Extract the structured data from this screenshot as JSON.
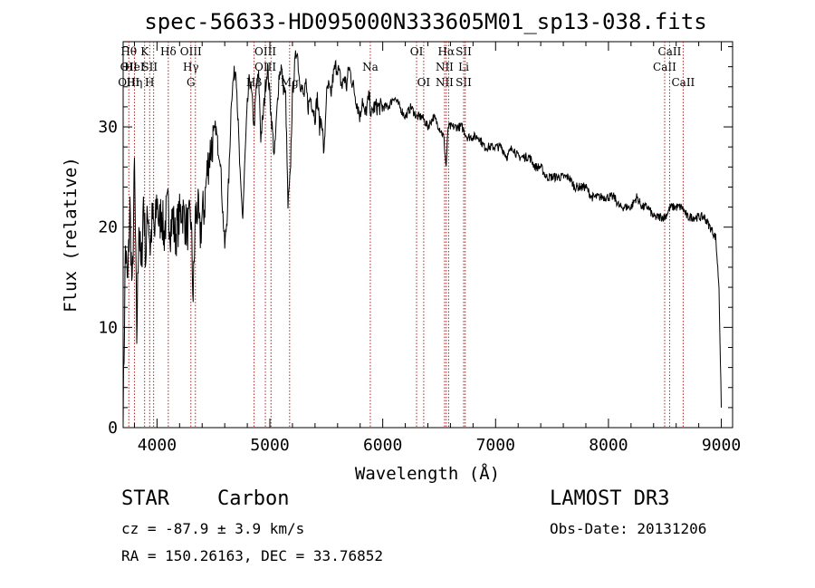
{
  "chart_data": {
    "type": "line",
    "title": "spec-56633-HD095000N333605M01_sp13-038.fits",
    "xlabel": "Wavelength (Å)",
    "ylabel": "Flux (relative)",
    "xlim": [
      3700,
      9100
    ],
    "ylim": [
      0,
      38.5
    ],
    "xticks": [
      4000,
      5000,
      6000,
      7000,
      8000,
      9000
    ],
    "yticks": [
      0,
      10,
      20,
      30
    ],
    "series": [
      {
        "name": "spectrum",
        "x": [
          3700,
          3720,
          3740,
          3760,
          3780,
          3800,
          3820,
          3840,
          3860,
          3880,
          3900,
          3920,
          3940,
          3960,
          3980,
          4000,
          4020,
          4040,
          4060,
          4080,
          4100,
          4120,
          4140,
          4160,
          4180,
          4200,
          4220,
          4240,
          4260,
          4280,
          4300,
          4320,
          4340,
          4360,
          4380,
          4400,
          4420,
          4440,
          4460,
          4480,
          4500,
          4520,
          4540,
          4560,
          4580,
          4600,
          4620,
          4640,
          4660,
          4680,
          4700,
          4720,
          4740,
          4760,
          4780,
          4800,
          4820,
          4840,
          4860,
          4880,
          4900,
          4920,
          4940,
          4960,
          4980,
          5000,
          5020,
          5040,
          5060,
          5080,
          5100,
          5120,
          5140,
          5160,
          5180,
          5200,
          5220,
          5240,
          5260,
          5280,
          5300,
          5320,
          5340,
          5360,
          5380,
          5400,
          5420,
          5440,
          5460,
          5480,
          5500,
          5520,
          5540,
          5560,
          5580,
          5600,
          5620,
          5640,
          5660,
          5680,
          5700,
          5720,
          5740,
          5760,
          5780,
          5800,
          5820,
          5840,
          5860,
          5880,
          5900,
          5920,
          5950,
          6000,
          6050,
          6100,
          6150,
          6200,
          6250,
          6300,
          6350,
          6400,
          6450,
          6500,
          6540,
          6562,
          6580,
          6620,
          6650,
          6700,
          6750,
          6800,
          6850,
          6900,
          6950,
          7000,
          7050,
          7100,
          7150,
          7200,
          7250,
          7300,
          7350,
          7400,
          7450,
          7500,
          7550,
          7600,
          7650,
          7700,
          7750,
          7800,
          7850,
          7900,
          7950,
          8000,
          8050,
          8100,
          8150,
          8200,
          8250,
          8300,
          8350,
          8400,
          8450,
          8500,
          8550,
          8600,
          8650,
          8700,
          8750,
          8800,
          8850,
          8900,
          8950,
          8980,
          9000
        ],
        "y": [
          0.5,
          18,
          14,
          22,
          13,
          26,
          9,
          21,
          15,
          23,
          17,
          22,
          18,
          21,
          19,
          23,
          20,
          22,
          19,
          21,
          22,
          20,
          21,
          19,
          20,
          21,
          22,
          21,
          20,
          20,
          21,
          13,
          21,
          22,
          19,
          21,
          22,
          25,
          27,
          28,
          29,
          30,
          28,
          27,
          22,
          18,
          21,
          26,
          33,
          35,
          36,
          30,
          24,
          21,
          27,
          32,
          35,
          33,
          30,
          34,
          35,
          29,
          31,
          34,
          36,
          33,
          30,
          27,
          31,
          35,
          36,
          34,
          33,
          22,
          25,
          33,
          36,
          38,
          35,
          34,
          33,
          34,
          32,
          33,
          32,
          31,
          33,
          30,
          31,
          27,
          33,
          34,
          33,
          35,
          36,
          36,
          35,
          34,
          35,
          34,
          36,
          35,
          34,
          33,
          32,
          31,
          33,
          31,
          32,
          33,
          31,
          32,
          32,
          32,
          32,
          33,
          32,
          31,
          32,
          31,
          31,
          30,
          31,
          30,
          29,
          26,
          30,
          30,
          30,
          30,
          29,
          29,
          29,
          28,
          28,
          28,
          28,
          27,
          28,
          27,
          27,
          27,
          26,
          26,
          25,
          25,
          25,
          25,
          25,
          24,
          24,
          24,
          23,
          23,
          23,
          23,
          23,
          22,
          22,
          22,
          23,
          22,
          22,
          21,
          21,
          21,
          22,
          22,
          22,
          21,
          21,
          21,
          21,
          20,
          19,
          14,
          2
        ]
      }
    ],
    "spectral_lines": [
      {
        "x": 3750,
        "labels": [
          "Hθ",
          "OII",
          "OIII"
        ]
      },
      {
        "x": 3800,
        "labels": [
          "",
          "HeI",
          "Hη"
        ]
      },
      {
        "x": 3890,
        "labels": [
          "K",
          "",
          ""
        ]
      },
      {
        "x": 3935,
        "labels": [
          "",
          "SII",
          "H"
        ]
      },
      {
        "x": 3970,
        "labels": [
          "",
          "",
          ""
        ]
      },
      {
        "x": 4100,
        "labels": [
          "Hδ",
          "",
          ""
        ]
      },
      {
        "x": 4300,
        "labels": [
          "OIII",
          "Hγ",
          "G"
        ]
      },
      {
        "x": 4340,
        "labels": [
          "",
          "",
          ""
        ]
      },
      {
        "x": 4860,
        "labels": [
          "",
          "",
          "Hβ"
        ]
      },
      {
        "x": 4960,
        "labels": [
          "OIII",
          "OIII",
          ""
        ]
      },
      {
        "x": 5010,
        "labels": [
          "",
          "",
          ""
        ]
      },
      {
        "x": 5175,
        "labels": [
          "",
          "",
          "Mg"
        ]
      },
      {
        "x": 5890,
        "labels": [
          "",
          "Na",
          ""
        ]
      },
      {
        "x": 6300,
        "labels": [
          "OI",
          "",
          ""
        ]
      },
      {
        "x": 6363,
        "labels": [
          "",
          "",
          "OI"
        ]
      },
      {
        "x": 6548,
        "labels": [
          "",
          "NII",
          "NII"
        ]
      },
      {
        "x": 6563,
        "labels": [
          "Hα",
          "",
          ""
        ]
      },
      {
        "x": 6584,
        "labels": [
          "",
          "",
          ""
        ]
      },
      {
        "x": 6717,
        "labels": [
          "SII",
          "Li",
          "SII"
        ]
      },
      {
        "x": 6731,
        "labels": [
          "",
          "",
          ""
        ]
      },
      {
        "x": 8498,
        "labels": [
          "",
          "CaII",
          ""
        ]
      },
      {
        "x": 8542,
        "labels": [
          "CaII",
          "",
          ""
        ]
      },
      {
        "x": 8662,
        "labels": [
          "",
          "",
          "CaII"
        ]
      }
    ]
  },
  "info": {
    "object_class": "STAR",
    "subclass": "Carbon",
    "survey": "LAMOST DR3",
    "redshift_text": "cz = -87.9 ± 3.9 km/s",
    "obs_date": "Obs-Date: 20131206",
    "coords": "RA = 150.26163, DEC =  33.76852"
  }
}
